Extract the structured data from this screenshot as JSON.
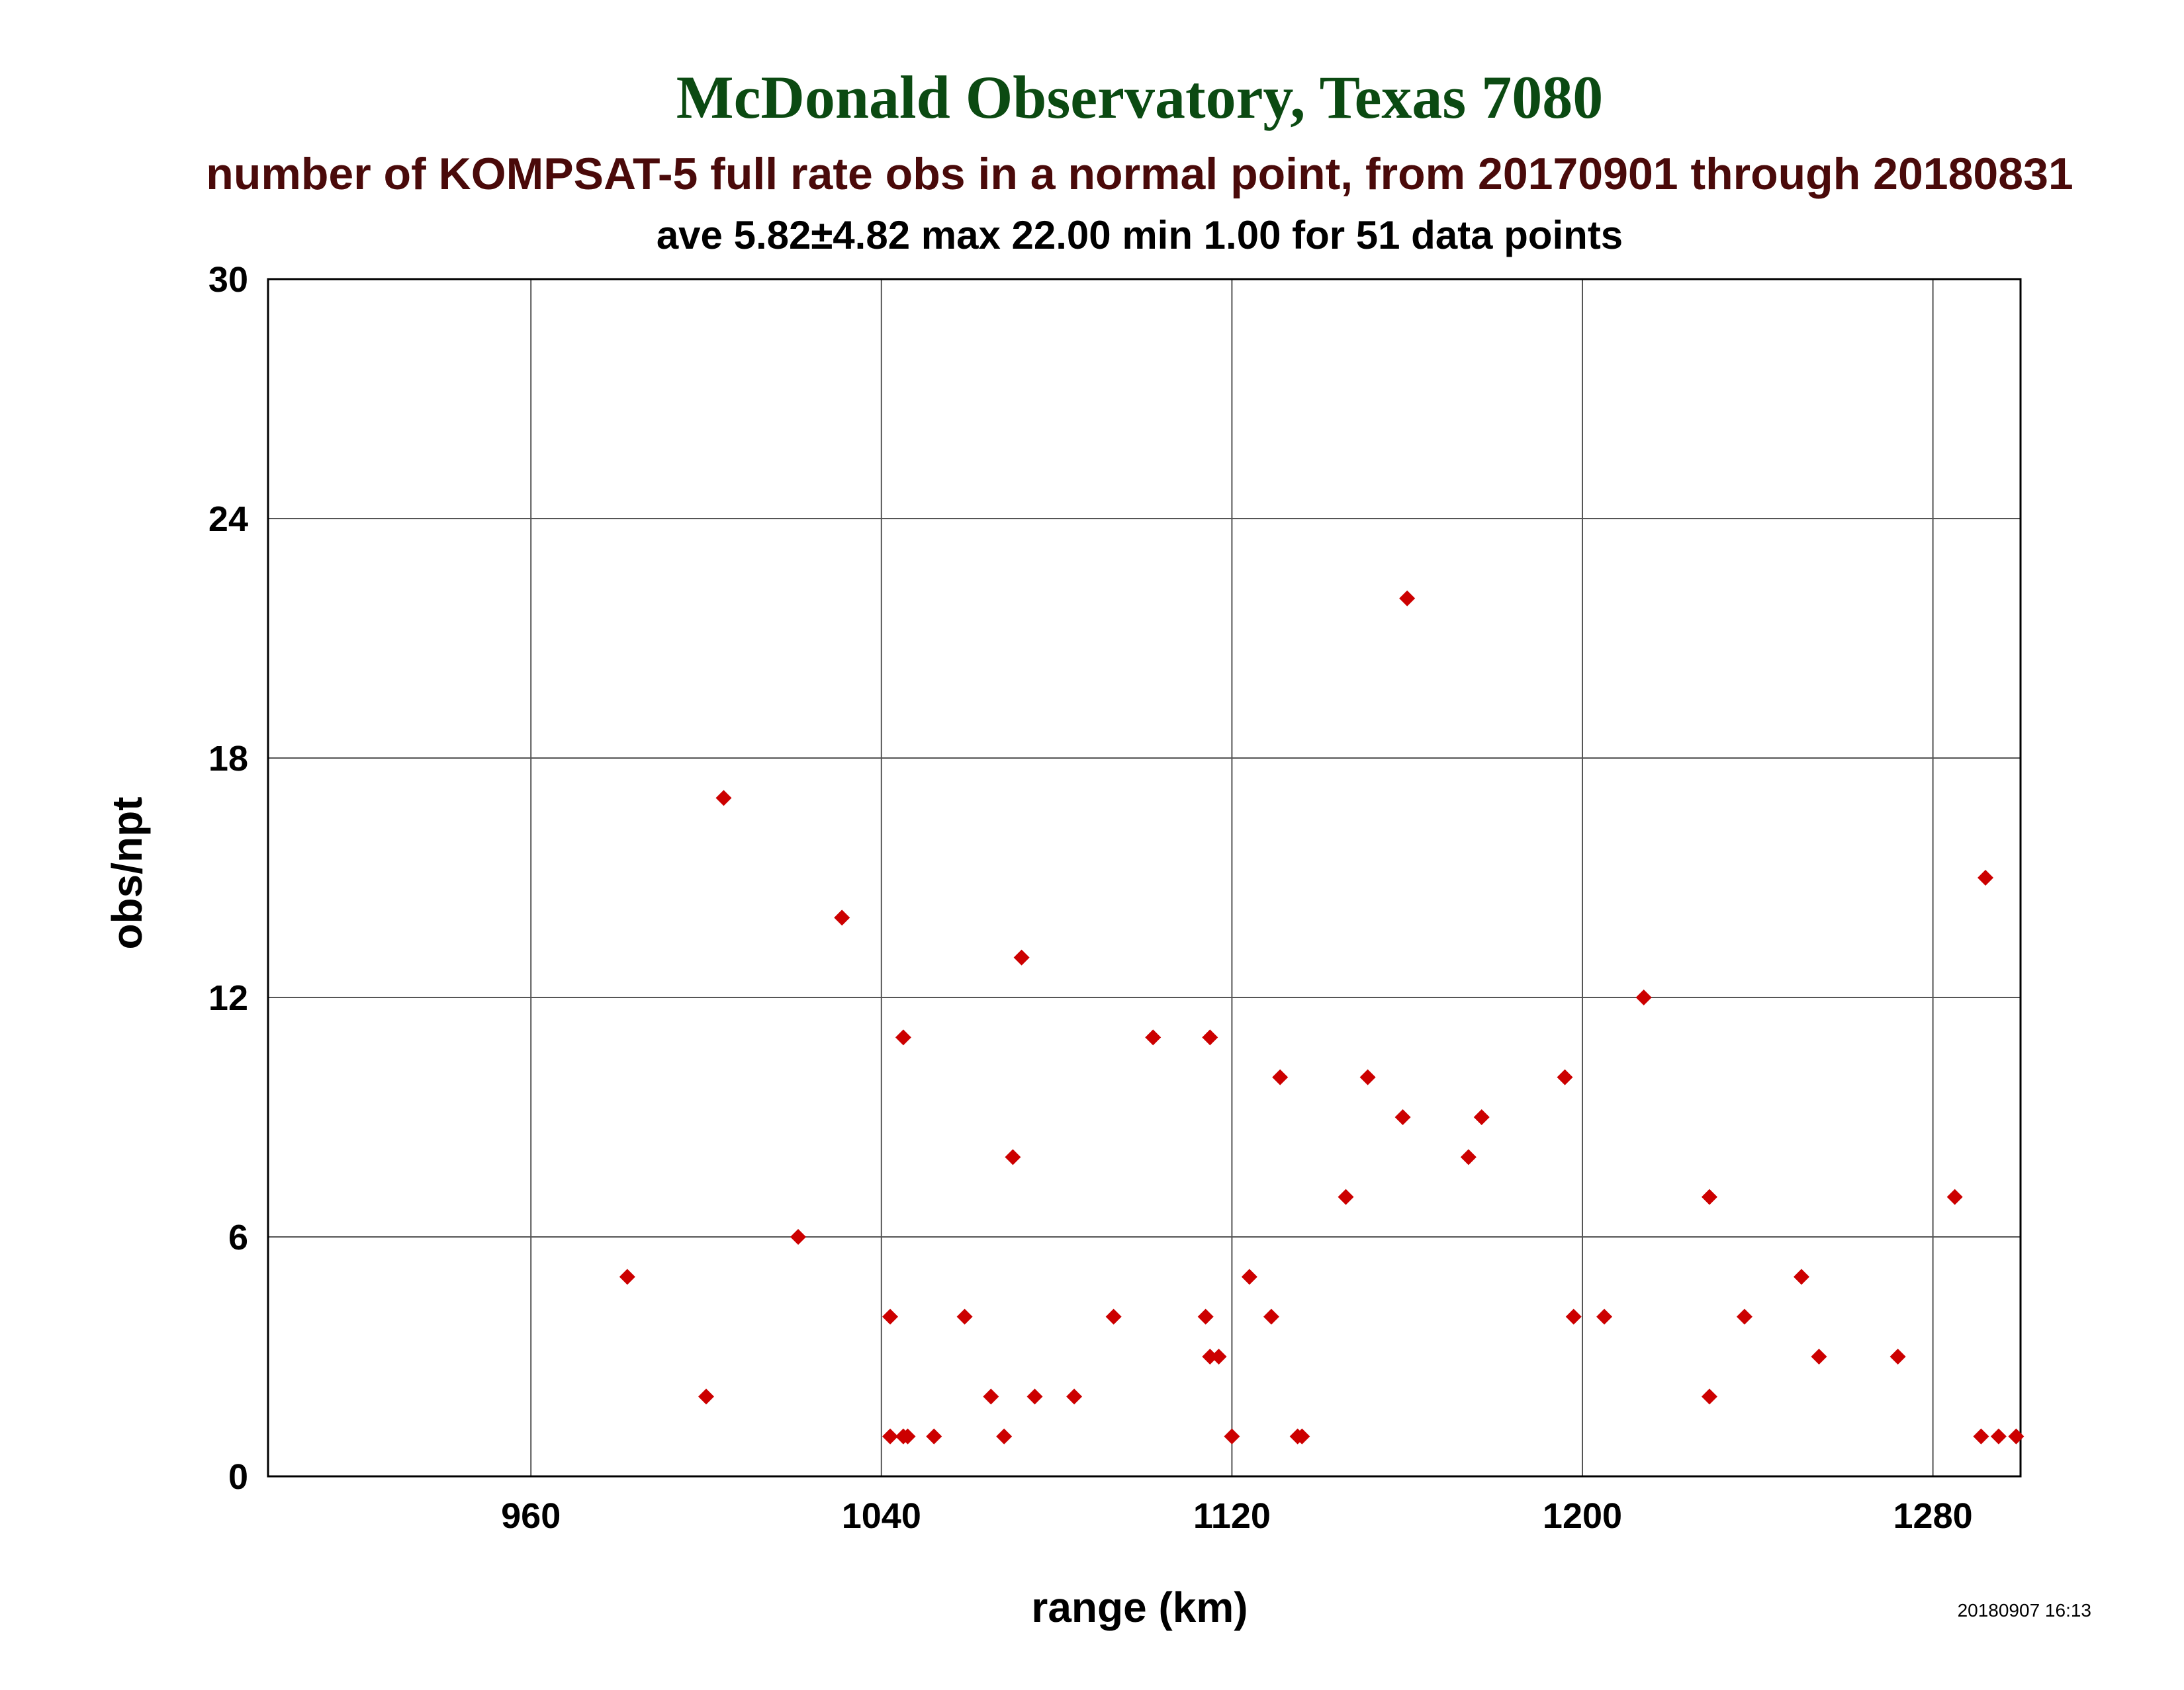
{
  "chart_data": {
    "type": "scatter",
    "title": "McDonald Observatory, Texas 7080",
    "subtitle": "number of KOMPSAT-5 full rate obs in a normal point, from 20170901 through 20180831",
    "stats_line": "ave 5.82±4.82 max 22.00 min 1.00 for 51 data points",
    "xlabel": "range (km)",
    "ylabel": "obs/npt",
    "xlim": [
      900,
      1300
    ],
    "ylim": [
      0,
      30
    ],
    "x_ticks": [
      960,
      1040,
      1120,
      1200,
      1280
    ],
    "y_ticks": [
      0,
      6,
      12,
      18,
      24,
      30
    ],
    "grid": true,
    "timestamp": "20180907 16:13",
    "colors": {
      "title": "#0b4a12",
      "subtitle": "#4a0a0a",
      "marker": "#cc0000",
      "grid": "#555555",
      "frame": "#000000"
    },
    "series": [
      {
        "marker": "diamond",
        "points": [
          [
            982,
            5
          ],
          [
            1000,
            2
          ],
          [
            1004,
            17
          ],
          [
            1021,
            6
          ],
          [
            1031,
            14
          ],
          [
            1042,
            1
          ],
          [
            1042,
            4
          ],
          [
            1045,
            1
          ],
          [
            1045,
            11
          ],
          [
            1046,
            1
          ],
          [
            1052,
            1
          ],
          [
            1059,
            4
          ],
          [
            1065,
            2
          ],
          [
            1068,
            1
          ],
          [
            1070,
            8
          ],
          [
            1072,
            13
          ],
          [
            1075,
            2
          ],
          [
            1084,
            2
          ],
          [
            1093,
            4
          ],
          [
            1102,
            11
          ],
          [
            1114,
            4
          ],
          [
            1115,
            3
          ],
          [
            1115,
            11
          ],
          [
            1117,
            3
          ],
          [
            1120,
            1
          ],
          [
            1124,
            5
          ],
          [
            1129,
            4
          ],
          [
            1131,
            10
          ],
          [
            1135,
            1
          ],
          [
            1136,
            1
          ],
          [
            1146,
            7
          ],
          [
            1151,
            10
          ],
          [
            1159,
            9
          ],
          [
            1160,
            22
          ],
          [
            1174,
            8
          ],
          [
            1177,
            9
          ],
          [
            1196,
            10
          ],
          [
            1198,
            4
          ],
          [
            1205,
            4
          ],
          [
            1214,
            12
          ],
          [
            1229,
            2
          ],
          [
            1229,
            7
          ],
          [
            1237,
            4
          ],
          [
            1250,
            5
          ],
          [
            1254,
            3
          ],
          [
            1272,
            3
          ],
          [
            1285,
            7
          ],
          [
            1291,
            1
          ],
          [
            1292,
            15
          ],
          [
            1295,
            1
          ],
          [
            1299,
            1
          ]
        ]
      }
    ]
  }
}
